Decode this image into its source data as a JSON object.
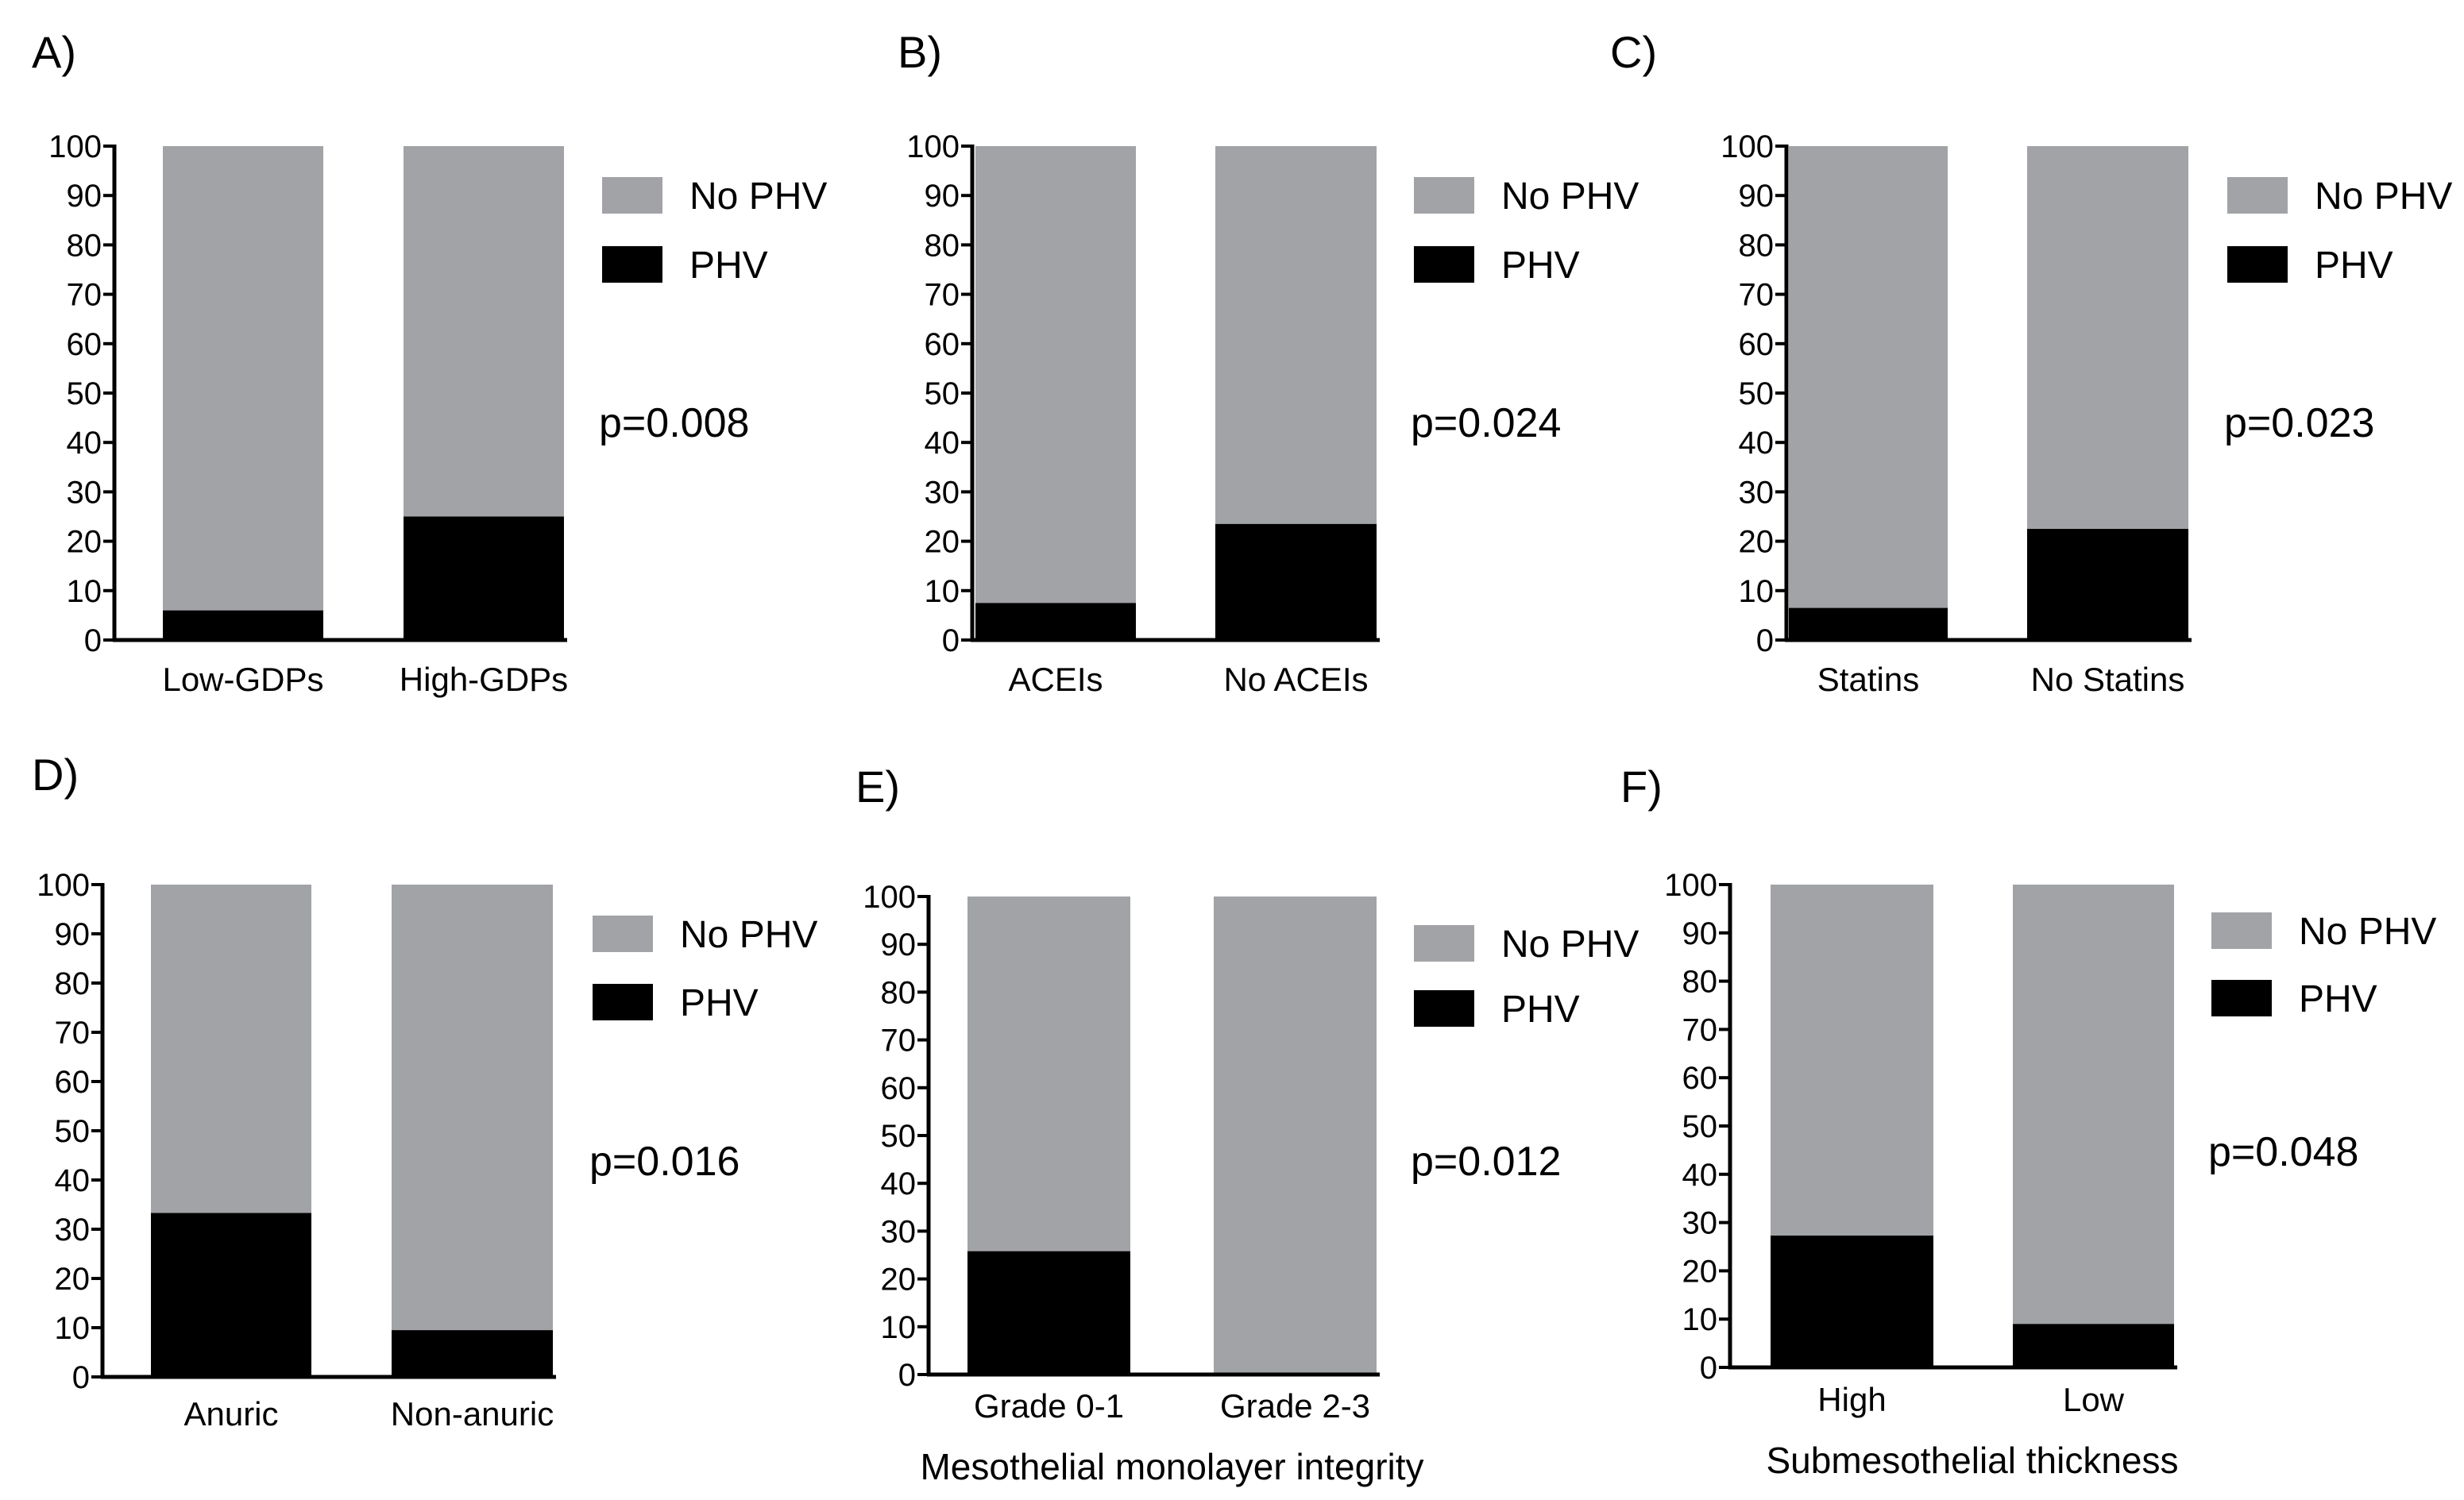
{
  "figure": {
    "legend": [
      {
        "label": "No PHV",
        "color": "#a2a3a6"
      },
      {
        "label": "PHV",
        "color": "#000000"
      }
    ],
    "colors": {
      "no_phv": "#a2a3a6",
      "phv": "#000000",
      "axis": "#000000"
    }
  },
  "chart_data": [
    {
      "type": "bar",
      "stacked": true,
      "panel": "A)",
      "title": "",
      "categories": [
        "Low-GDPs",
        "High-GDPs"
      ],
      "series": [
        {
          "name": "PHV",
          "values": [
            6,
            25
          ]
        },
        {
          "name": "No PHV",
          "values": [
            94,
            75
          ]
        }
      ],
      "xlabel": "",
      "ylabel": "",
      "ylim": [
        0,
        100
      ],
      "yticks": [
        "0",
        "10",
        "20",
        "30",
        "40",
        "50",
        "60",
        "70",
        "80",
        "90",
        "100"
      ],
      "annotation": "p=0.008",
      "legend_position": "right"
    },
    {
      "type": "bar",
      "stacked": true,
      "panel": "B)",
      "title": "",
      "categories": [
        "ACEIs",
        "No ACEIs"
      ],
      "series": [
        {
          "name": "PHV",
          "values": [
            7.5,
            23.5
          ]
        },
        {
          "name": "No PHV",
          "values": [
            92.5,
            76.5
          ]
        }
      ],
      "xlabel": "",
      "ylabel": "",
      "ylim": [
        0,
        100
      ],
      "yticks": [
        "0",
        "10",
        "20",
        "30",
        "40",
        "50",
        "60",
        "70",
        "80",
        "90",
        "100"
      ],
      "annotation": "p=0.024",
      "legend_position": "right"
    },
    {
      "type": "bar",
      "stacked": true,
      "panel": "C)",
      "title": "",
      "categories": [
        "Statins",
        "No Statins"
      ],
      "series": [
        {
          "name": "PHV",
          "values": [
            6.5,
            22.5
          ]
        },
        {
          "name": "No PHV",
          "values": [
            93.5,
            77.5
          ]
        }
      ],
      "xlabel": "",
      "ylabel": "",
      "ylim": [
        0,
        100
      ],
      "yticks": [
        "0",
        "10",
        "20",
        "30",
        "40",
        "50",
        "60",
        "70",
        "80",
        "90",
        "100"
      ],
      "annotation": "p=0.023",
      "legend_position": "right"
    },
    {
      "type": "bar",
      "stacked": true,
      "panel": "D)",
      "title": "",
      "categories": [
        "Anuric",
        "Non-anuric"
      ],
      "series": [
        {
          "name": "PHV",
          "values": [
            33.3,
            9.5
          ]
        },
        {
          "name": "No PHV",
          "values": [
            66.7,
            90.5
          ]
        }
      ],
      "xlabel": "",
      "ylabel": "",
      "ylim": [
        0,
        100
      ],
      "yticks": [
        "0",
        "10",
        "20",
        "30",
        "40",
        "50",
        "60",
        "70",
        "80",
        "90",
        "100"
      ],
      "annotation": "p=0.016",
      "legend_position": "right"
    },
    {
      "type": "bar",
      "stacked": true,
      "panel": "E)",
      "title": "",
      "categories": [
        "Grade 0-1",
        "Grade 2-3"
      ],
      "series": [
        {
          "name": "PHV",
          "values": [
            25.8,
            0
          ]
        },
        {
          "name": "No PHV",
          "values": [
            74.2,
            100
          ]
        }
      ],
      "xlabel": "Mesothelial monolayer integrity",
      "ylabel": "",
      "ylim": [
        0,
        100
      ],
      "yticks": [
        "0",
        "10",
        "20",
        "30",
        "40",
        "50",
        "60",
        "70",
        "80",
        "90",
        "100"
      ],
      "annotation": "p=0.012",
      "legend_position": "right"
    },
    {
      "type": "bar",
      "stacked": true,
      "panel": "F)",
      "title": "",
      "categories": [
        "High",
        "Low"
      ],
      "series": [
        {
          "name": "PHV",
          "values": [
            27.3,
            9
          ]
        },
        {
          "name": "No PHV",
          "values": [
            72.7,
            91
          ]
        }
      ],
      "xlabel": "Submesothelial thickness",
      "ylabel": "",
      "ylim": [
        0,
        100
      ],
      "yticks": [
        "0",
        "10",
        "20",
        "30",
        "40",
        "50",
        "60",
        "70",
        "80",
        "90",
        "100"
      ],
      "annotation": "p=0.048",
      "legend_position": "right"
    }
  ]
}
